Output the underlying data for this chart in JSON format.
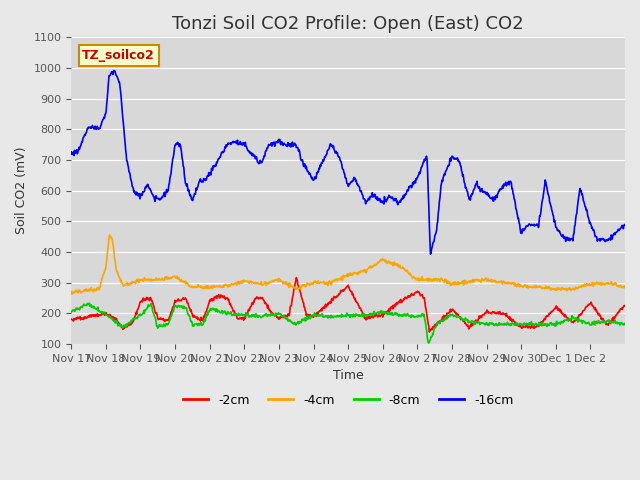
{
  "title": "Tonzi Soil CO2 Profile: Open (East) CO2",
  "ylabel": "Soil CO2 (mV)",
  "xlabel": "Time",
  "watermark": "TZ_soilco2",
  "ylim": [
    100,
    1100
  ],
  "xlim": [
    0,
    16
  ],
  "x_tick_labels": [
    "Nov 17",
    "Nov 18",
    "Nov 19",
    "Nov 20",
    "Nov 21",
    "Nov 22",
    "Nov 23",
    "Nov 24",
    "Nov 25",
    "Nov 26",
    "Nov 27",
    "Nov 28",
    "Nov 29",
    "Nov 30",
    "Dec 1",
    "Dec 2"
  ],
  "y_ticks": [
    100,
    200,
    300,
    400,
    500,
    600,
    700,
    800,
    900,
    1000,
    1100
  ],
  "colors": {
    "minus2cm": "#ff0000",
    "minus4cm": "#ffa500",
    "minus8cm": "#00cc00",
    "minus16cm": "#0000ff"
  },
  "legend_labels": [
    "-2cm",
    "-4cm",
    "-8cm",
    "-16cm"
  ],
  "background_color": "#e8e8e8",
  "plot_bg_color": "#d8d8d8",
  "title_fontsize": 13,
  "watermark_color": "#cc0000",
  "watermark_bg": "#ffffcc",
  "watermark_border": "#cc8800"
}
